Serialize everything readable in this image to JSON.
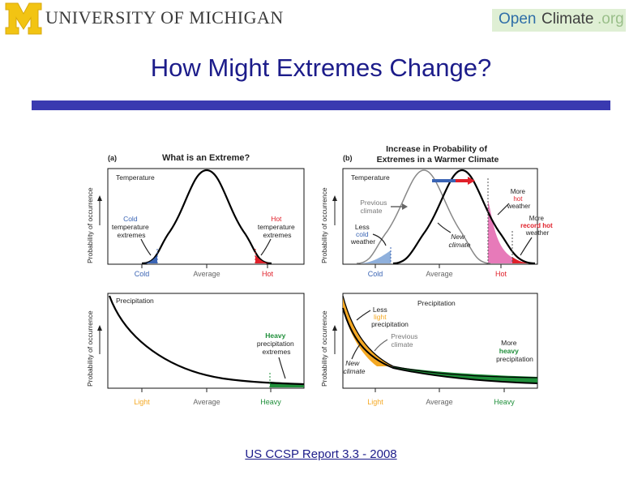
{
  "header": {
    "university_name": "UNIVERSITY OF MICHIGAN",
    "logo_letter": "M",
    "openclimate": {
      "open": "Open",
      "climate": "Climate",
      "org": ".org"
    }
  },
  "slide": {
    "title": "How Might Extremes Change?"
  },
  "figure": {
    "panel_a": {
      "letter": "(a)",
      "heading": "What is an Extreme?",
      "y_axis_label": "Probability of occurrence",
      "series_label": "Temperature",
      "cold_note": [
        "Cold",
        "temperature",
        "extremes"
      ],
      "hot_note": [
        "Hot",
        "temperature",
        "extremes"
      ],
      "x_ticks": [
        "Cold",
        "Average",
        "Hot"
      ]
    },
    "panel_b": {
      "letter": "(b)",
      "heading": [
        "Increase in Probability of",
        "Extremes in a Warmer Climate"
      ],
      "y_axis_label": "Probability of occurrence",
      "series_label": "Temperature",
      "previous_climate": [
        "Previous",
        "climate"
      ],
      "less_cold": [
        "Less",
        "cold",
        "weather"
      ],
      "new_climate": [
        "New",
        "climate"
      ],
      "more_hot": [
        "More",
        "hot",
        "weather"
      ],
      "more_record_hot": [
        "More",
        "record hot",
        "weather"
      ],
      "x_ticks": [
        "Cold",
        "Average",
        "Hot"
      ]
    },
    "panel_c": {
      "y_axis_label": "Probability of occurrence",
      "series_label": "Precipitation",
      "heavy_note": [
        "Heavy",
        "precipitation",
        "extremes"
      ],
      "x_ticks": [
        "Light",
        "Average",
        "Heavy"
      ]
    },
    "panel_d": {
      "y_axis_label": "Probability of occurrence",
      "series_label": "Precipitation",
      "less_light": [
        "Less",
        "light",
        "precipitation"
      ],
      "previous_climate": [
        "Previous",
        "climate"
      ],
      "new_climate": [
        "New",
        "climate"
      ],
      "more_heavy": [
        "More",
        "heavy",
        "precipitation"
      ],
      "x_ticks": [
        "Light",
        "Average",
        "Heavy"
      ]
    },
    "colors": {
      "cold": "#3a64b4",
      "cold_light": "#8fb0dc",
      "hot": "#e0202a",
      "hot_pink": "#e77ab9",
      "heavy": "#1f8f3a",
      "light": "#f4a823",
      "axis_text": "#222222",
      "gray": "#777777"
    }
  },
  "caption": "US CCSP Report 3.3 - 2008"
}
